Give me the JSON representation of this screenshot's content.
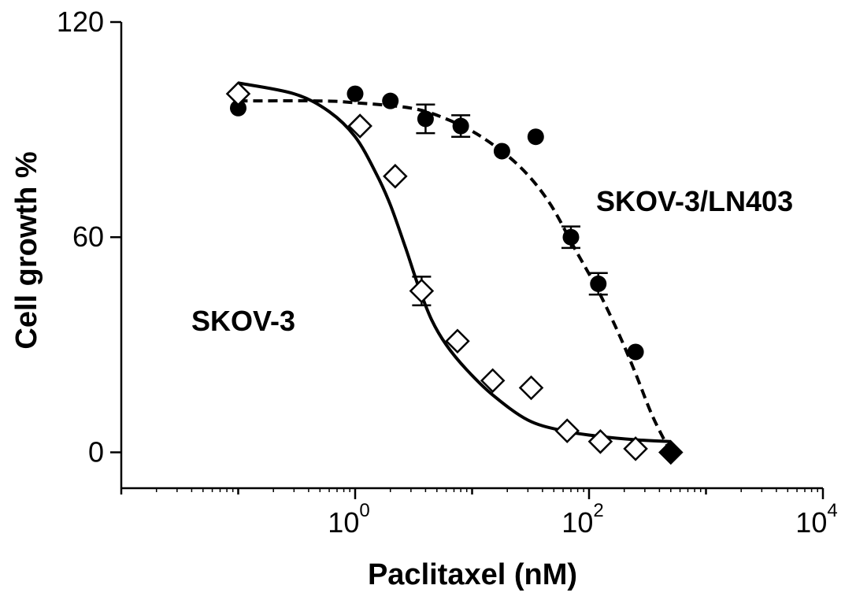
{
  "chart_data": {
    "type": "scatter",
    "xlabel": "Paclitaxel (nM)",
    "ylabel": "Cell growth %",
    "x_scale": "log",
    "xlim": [
      0.01,
      10000
    ],
    "ylim": [
      -10,
      120
    ],
    "y_ticks": [
      {
        "value": 0,
        "label": "0"
      },
      {
        "value": 60,
        "label": "60"
      },
      {
        "value": 120,
        "label": "120"
      }
    ],
    "x_ticks": [
      {
        "value": 1,
        "base": "10",
        "exp": "0"
      },
      {
        "value": 100,
        "base": "10",
        "exp": "2"
      },
      {
        "value": 10000,
        "base": "10",
        "exp": "4"
      }
    ],
    "grid": false,
    "legend": "none",
    "series": [
      {
        "name": "SKOV-3",
        "marker": "open-diamond",
        "line": "solid",
        "points": [
          {
            "x": 0.1,
            "y": 100
          },
          {
            "x": 1.1,
            "y": 91
          },
          {
            "x": 2.2,
            "y": 77
          },
          {
            "x": 3.7,
            "y": 45,
            "err": 4
          },
          {
            "x": 7.5,
            "y": 31
          },
          {
            "x": 15,
            "y": 20
          },
          {
            "x": 32,
            "y": 18
          },
          {
            "x": 65,
            "y": 6
          },
          {
            "x": 125,
            "y": 3
          },
          {
            "x": 250,
            "y": 1
          },
          {
            "x": 500,
            "y": 0
          }
        ],
        "curve": [
          [
            0.1,
            103
          ],
          [
            0.3,
            100
          ],
          [
            0.6,
            95
          ],
          [
            1,
            88
          ],
          [
            1.5,
            78
          ],
          [
            2,
            69
          ],
          [
            2.7,
            57
          ],
          [
            3.5,
            46
          ],
          [
            4.5,
            37
          ],
          [
            6,
            30
          ],
          [
            9,
            23
          ],
          [
            15,
            16
          ],
          [
            30,
            9
          ],
          [
            60,
            6
          ],
          [
            120,
            4.5
          ],
          [
            250,
            3.5
          ],
          [
            500,
            3
          ]
        ]
      },
      {
        "name": "SKOV-3/LN403",
        "marker": "filled-circle",
        "line": "dashed",
        "points": [
          {
            "x": 0.1,
            "y": 96
          },
          {
            "x": 1,
            "y": 100
          },
          {
            "x": 2,
            "y": 98
          },
          {
            "x": 4,
            "y": 93,
            "err": 4
          },
          {
            "x": 8,
            "y": 91,
            "err": 3
          },
          {
            "x": 18,
            "y": 84
          },
          {
            "x": 35,
            "y": 88
          },
          {
            "x": 70,
            "y": 60,
            "err": 3
          },
          {
            "x": 120,
            "y": 47,
            "err": 3
          },
          {
            "x": 250,
            "y": 28
          },
          {
            "x": 500,
            "y": 0
          }
        ],
        "curve": [
          [
            0.1,
            98
          ],
          [
            0.5,
            98
          ],
          [
            1,
            97.5
          ],
          [
            3,
            96
          ],
          [
            6,
            93
          ],
          [
            12,
            88
          ],
          [
            25,
            80
          ],
          [
            45,
            70
          ],
          [
            75,
            57
          ],
          [
            120,
            45
          ],
          [
            180,
            33
          ],
          [
            250,
            22
          ],
          [
            350,
            10
          ],
          [
            500,
            0
          ]
        ]
      }
    ]
  }
}
